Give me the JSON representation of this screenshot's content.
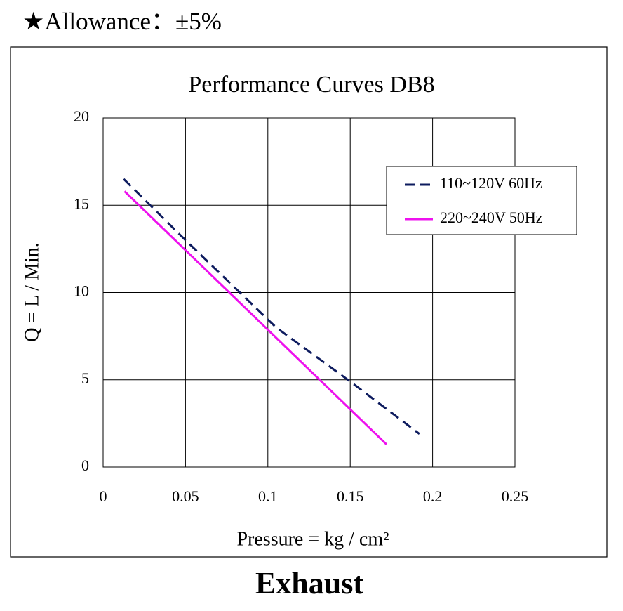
{
  "header": "★Allowance：±5%",
  "footer": "Exhaust",
  "chart_data": {
    "type": "line",
    "title": "Performance  Curves  DB8",
    "x_label": "Pressure = kg / cm²",
    "y_label": "Q = L / Min.",
    "xlim": [
      0,
      0.25
    ],
    "xticks": [
      0,
      0.05,
      0.1,
      0.15,
      0.2,
      0.25
    ],
    "ylim": [
      0,
      20
    ],
    "yticks": [
      0,
      5,
      10,
      15,
      20
    ],
    "grid": true,
    "legend": "upper right",
    "series": [
      {
        "name": "110~120V 60Hz",
        "color": "#0d1b5e",
        "line_style": "dashed",
        "x": [
          0.0125,
          0.05,
          0.105,
          0.15,
          0.192
        ],
        "values": [
          16.5,
          13.0,
          8.0,
          4.9,
          1.9
        ]
      },
      {
        "name": "220~240V 50Hz",
        "color": "#ee11ee",
        "line_style": "solid",
        "x": [
          0.013,
          0.172
        ],
        "values": [
          15.8,
          1.3
        ]
      }
    ]
  }
}
